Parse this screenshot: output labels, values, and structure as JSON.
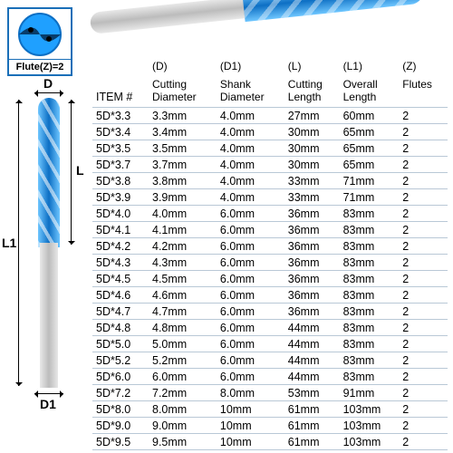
{
  "flute_box": {
    "label": "Flute(Z)=2"
  },
  "dimensions": {
    "D": "D",
    "L": "L",
    "L1": "L1",
    "D1": "D1"
  },
  "headers": {
    "item": "ITEM #",
    "D_code": "(D)",
    "D_label": "Cutting Diameter",
    "D1_code": "(D1)",
    "D1_label": "Shank Diameter",
    "L_code": "(L)",
    "L_label": "Cutting Length",
    "L1_code": "(L1)",
    "L1_label": "Overall Length",
    "Z_code": "(Z)",
    "Z_label": "Flutes"
  },
  "colors": {
    "border": "#1a6fb8",
    "row_line": "#b9c8d6",
    "flute_light": "#6ec6ff",
    "flute_dark": "#0d6fc4",
    "shank_light": "#e8e8e8",
    "shank_dark": "#bcbcbc"
  },
  "table": {
    "columns": [
      "item",
      "D",
      "D1",
      "L",
      "L1",
      "Z"
    ],
    "rows": [
      [
        "5D*3.3",
        "3.3mm",
        "4.0mm",
        "27mm",
        "60mm",
        "2"
      ],
      [
        "5D*3.4",
        "3.4mm",
        "4.0mm",
        "30mm",
        "65mm",
        "2"
      ],
      [
        "5D*3.5",
        "3.5mm",
        "4.0mm",
        "30mm",
        "65mm",
        "2"
      ],
      [
        "5D*3.7",
        "3.7mm",
        "4.0mm",
        "30mm",
        "65mm",
        "2"
      ],
      [
        "5D*3.8",
        "3.8mm",
        "4.0mm",
        "33mm",
        "71mm",
        "2"
      ],
      [
        "5D*3.9",
        "3.9mm",
        "4.0mm",
        "33mm",
        "71mm",
        "2"
      ],
      [
        "5D*4.0",
        "4.0mm",
        "6.0mm",
        "36mm",
        "83mm",
        "2"
      ],
      [
        "5D*4.1",
        "4.1mm",
        "6.0mm",
        "36mm",
        "83mm",
        "2"
      ],
      [
        "5D*4.2",
        "4.2mm",
        "6.0mm",
        "36mm",
        "83mm",
        "2"
      ],
      [
        "5D*4.3",
        "4.3mm",
        "6.0mm",
        "36mm",
        "83mm",
        "2"
      ],
      [
        "5D*4.5",
        "4.5mm",
        "6.0mm",
        "36mm",
        "83mm",
        "2"
      ],
      [
        "5D*4.6",
        "4.6mm",
        "6.0mm",
        "36mm",
        "83mm",
        "2"
      ],
      [
        "5D*4.7",
        "4.7mm",
        "6.0mm",
        "36mm",
        "83mm",
        "2"
      ],
      [
        "5D*4.8",
        "4.8mm",
        "6.0mm",
        "44mm",
        "83mm",
        "2"
      ],
      [
        "5D*5.0",
        "5.0mm",
        "6.0mm",
        "44mm",
        "83mm",
        "2"
      ],
      [
        "5D*5.2",
        "5.2mm",
        "6.0mm",
        "44mm",
        "83mm",
        "2"
      ],
      [
        "5D*6.0",
        "6.0mm",
        "6.0mm",
        "44mm",
        "83mm",
        "2"
      ],
      [
        "5D*7.2",
        "7.2mm",
        "8.0mm",
        "53mm",
        "91mm",
        "2"
      ],
      [
        "5D*8.0",
        "8.0mm",
        "10mm",
        "61mm",
        "103mm",
        "2"
      ],
      [
        "5D*9.0",
        "9.0mm",
        "10mm",
        "61mm",
        "103mm",
        "2"
      ],
      [
        "5D*9.5",
        "9.5mm",
        "10mm",
        "61mm",
        "103mm",
        "2"
      ]
    ]
  }
}
